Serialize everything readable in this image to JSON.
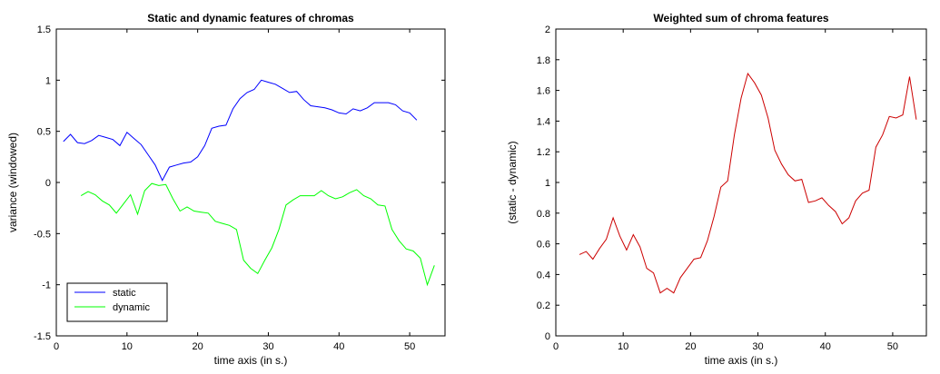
{
  "chart_data": [
    {
      "type": "line",
      "title": "Static and dynamic features of chromas",
      "xlabel": "time axis (in s.)",
      "ylabel": "variance (windowed)",
      "xlim": [
        0,
        55
      ],
      "ylim": [
        -1.5,
        1.5
      ],
      "xticks": [
        0,
        10,
        20,
        30,
        40,
        50
      ],
      "yticks": [
        -1.5,
        -1,
        -0.5,
        0,
        0.5,
        1,
        1.5
      ],
      "xtick_labels": [
        "0",
        "10",
        "20",
        "30",
        "40",
        "50"
      ],
      "ytick_labels": [
        "-1.5",
        "-1",
        "-0.5",
        "0",
        "0.5",
        "1",
        "1.5"
      ],
      "grid": false,
      "legend_position": "bottom-left",
      "series": [
        {
          "name": "static",
          "color": "#0000ff",
          "x": [
            1,
            2,
            3,
            4,
            5,
            6,
            7,
            8,
            9,
            10,
            11,
            12,
            13,
            14,
            15,
            16,
            17,
            18,
            19,
            20,
            21,
            22,
            23,
            24,
            25,
            26,
            27,
            28,
            29,
            30,
            31,
            32,
            33,
            34,
            35,
            36,
            37,
            38,
            39,
            40,
            41,
            42,
            43,
            44,
            45,
            46,
            47,
            48,
            49,
            50,
            51
          ],
          "y": [
            0.4,
            0.47,
            0.39,
            0.38,
            0.41,
            0.46,
            0.44,
            0.42,
            0.36,
            0.49,
            0.43,
            0.37,
            0.27,
            0.17,
            0.02,
            0.15,
            0.17,
            0.19,
            0.2,
            0.25,
            0.36,
            0.53,
            0.55,
            0.56,
            0.72,
            0.82,
            0.88,
            0.91,
            1.0,
            0.98,
            0.96,
            0.92,
            0.88,
            0.89,
            0.81,
            0.75,
            0.74,
            0.73,
            0.71,
            0.68,
            0.67,
            0.72,
            0.7,
            0.73,
            0.78,
            0.78,
            0.78,
            0.76,
            0.7,
            0.68,
            0.61
          ]
        },
        {
          "name": "dynamic",
          "color": "#00ff00",
          "x": [
            3.5,
            4.5,
            5.5,
            6.5,
            7.5,
            8.5,
            9.5,
            10.5,
            11.5,
            12.5,
            13.5,
            14.5,
            15.5,
            16.5,
            17.5,
            18.5,
            19.5,
            20.5,
            21.5,
            22.5,
            23.5,
            24.5,
            25.5,
            26.5,
            27.5,
            28.5,
            29.5,
            30.5,
            31.5,
            32.5,
            33.5,
            34.5,
            35.5,
            36.5,
            37.5,
            38.5,
            39.5,
            40.5,
            41.5,
            42.5,
            43.5,
            44.5,
            45.5,
            46.5,
            47.5,
            48.5,
            49.5,
            50.5,
            51.5,
            52.5,
            53.5
          ],
          "y": [
            -0.13,
            -0.09,
            -0.12,
            -0.18,
            -0.22,
            -0.3,
            -0.21,
            -0.12,
            -0.31,
            -0.08,
            -0.01,
            -0.03,
            -0.02,
            -0.16,
            -0.28,
            -0.24,
            -0.28,
            -0.29,
            -0.3,
            -0.38,
            -0.4,
            -0.42,
            -0.46,
            -0.76,
            -0.84,
            -0.89,
            -0.76,
            -0.64,
            -0.46,
            -0.22,
            -0.17,
            -0.13,
            -0.13,
            -0.13,
            -0.08,
            -0.13,
            -0.16,
            -0.14,
            -0.1,
            -0.07,
            -0.13,
            -0.16,
            -0.22,
            -0.23,
            -0.46,
            -0.57,
            -0.65,
            -0.67,
            -0.74,
            -1.0,
            -0.81
          ]
        }
      ]
    },
    {
      "type": "line",
      "title": "Weighted sum of chroma features",
      "xlabel": "time axis (in s.)",
      "ylabel": "(static - dynamic)",
      "xlim": [
        0,
        55
      ],
      "ylim": [
        0,
        2
      ],
      "xticks": [
        0,
        10,
        20,
        30,
        40,
        50
      ],
      "yticks": [
        0,
        0.2,
        0.4,
        0.6,
        0.8,
        1,
        1.2,
        1.4,
        1.6,
        1.8,
        2
      ],
      "xtick_labels": [
        "0",
        "10",
        "20",
        "30",
        "40",
        "50"
      ],
      "ytick_labels": [
        "0",
        "0.2",
        "0.4",
        "0.6",
        "0.8",
        "1",
        "1.2",
        "1.4",
        "1.6",
        "1.8",
        "2"
      ],
      "grid": false,
      "series": [
        {
          "color": "#cc0000",
          "x": [
            3.5,
            4.5,
            5.5,
            6.5,
            7.5,
            8.5,
            9.5,
            10.5,
            11.5,
            12.5,
            13.5,
            14.5,
            15.5,
            16.5,
            17.5,
            18.5,
            19.5,
            20.5,
            21.5,
            22.5,
            23.5,
            24.5,
            25.5,
            26.5,
            27.5,
            28.5,
            29.5,
            30.5,
            31.5,
            32.5,
            33.5,
            34.5,
            35.5,
            36.5,
            37.5,
            38.5,
            39.5,
            40.5,
            41.5,
            42.5,
            43.5,
            44.5,
            45.5,
            46.5,
            47.5,
            48.5,
            49.5,
            50.5,
            51.5,
            52.5,
            53.5
          ],
          "y": [
            0.53,
            0.55,
            0.5,
            0.57,
            0.63,
            0.77,
            0.65,
            0.56,
            0.66,
            0.58,
            0.44,
            0.41,
            0.28,
            0.31,
            0.28,
            0.38,
            0.44,
            0.5,
            0.51,
            0.62,
            0.78,
            0.97,
            1.01,
            1.31,
            1.55,
            1.71,
            1.65,
            1.57,
            1.42,
            1.21,
            1.12,
            1.05,
            1.01,
            1.02,
            0.87,
            0.88,
            0.9,
            0.85,
            0.81,
            0.73,
            0.77,
            0.88,
            0.93,
            0.95,
            1.23,
            1.31,
            1.43,
            1.42,
            1.44,
            1.69,
            1.41
          ]
        }
      ]
    }
  ]
}
